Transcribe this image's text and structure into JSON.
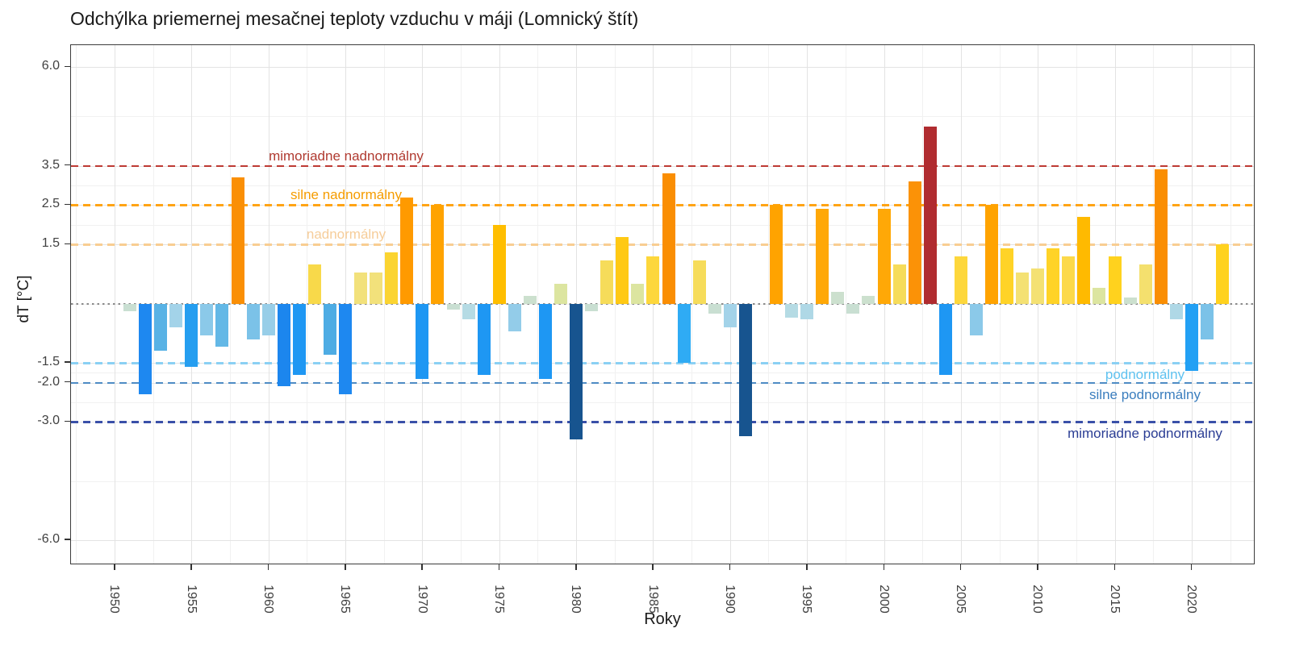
{
  "title": "Odchýlka priemernej mesačnej teploty vzduchu v máji (Lomnický štít)",
  "chart_data": {
    "type": "bar",
    "title": "Odchýlka priemernej mesačnej teploty vzduchu v máji (Lomnický štít)",
    "xlabel": "Roky",
    "ylabel": "dT [°C]",
    "ylim": [
      -6.6,
      6.6
    ],
    "grid": true,
    "y_ticks": [
      {
        "value": 6.0,
        "label": "6.0"
      },
      {
        "value": 3.5,
        "label": "3.5"
      },
      {
        "value": 2.5,
        "label": "2.5"
      },
      {
        "value": 1.5,
        "label": "1.5"
      },
      {
        "value": -1.5,
        "label": "-1.5"
      },
      {
        "value": -2.0,
        "label": "-2.0"
      },
      {
        "value": -3.0,
        "label": "-3.0"
      },
      {
        "value": -6.0,
        "label": "-6.0"
      }
    ],
    "y_minor_gridlines": [
      4.75,
      3.0,
      2.0,
      0.0,
      -1.75,
      -2.5,
      -4.5
    ],
    "x_ticks": [
      1950,
      1955,
      1960,
      1965,
      1970,
      1975,
      1980,
      1985,
      1990,
      1995,
      2000,
      2005,
      2010,
      2015,
      2020
    ],
    "zero_line": true,
    "thresholds": [
      {
        "value": 3.5,
        "label": "mimoriadne nadnormálny",
        "line_color": "#be3a34",
        "label_color": "#b03a30",
        "side": "top"
      },
      {
        "value": 2.5,
        "label": "silne nadnormálny",
        "line_color": "#ffa415",
        "label_color": "#f59c00",
        "side": "top"
      },
      {
        "value": 1.5,
        "label": "nadnormálny",
        "line_color": "#f8cd92",
        "label_color": "#f6cd9a",
        "side": "top"
      },
      {
        "value": -1.5,
        "label": "podnormálny",
        "line_color": "#8ad0f4",
        "label_color": "#5fc2f0",
        "side": "bottom"
      },
      {
        "value": -2.0,
        "label": "silne podnormálny",
        "line_color": "#4e8bc4",
        "label_color": "#3b7ebe",
        "side": "bottom"
      },
      {
        "value": -3.0,
        "label": "mimoriadne podnormálny",
        "line_color": "#3a50a8",
        "label_color": "#2a3d94",
        "side": "bottom"
      }
    ],
    "x": [
      1951,
      1952,
      1953,
      1954,
      1955,
      1956,
      1957,
      1958,
      1959,
      1960,
      1961,
      1962,
      1963,
      1964,
      1965,
      1966,
      1967,
      1968,
      1969,
      1970,
      1971,
      1972,
      1973,
      1974,
      1975,
      1976,
      1977,
      1978,
      1979,
      1980,
      1981,
      1982,
      1983,
      1984,
      1985,
      1986,
      1987,
      1988,
      1989,
      1990,
      1991,
      1992,
      1993,
      1994,
      1995,
      1996,
      1997,
      1998,
      1999,
      2000,
      2001,
      2002,
      2003,
      2004,
      2005,
      2006,
      2007,
      2008,
      2009,
      2010,
      2011,
      2012,
      2013,
      2014,
      2015,
      2016,
      2017,
      2018,
      2019,
      2020,
      2021,
      2022
    ],
    "values": [
      -0.2,
      -2.3,
      -1.2,
      -0.6,
      -1.6,
      -0.8,
      -1.1,
      3.2,
      -0.9,
      -0.8,
      -2.1,
      -1.8,
      1.0,
      -1.3,
      -2.3,
      0.8,
      0.8,
      1.3,
      2.7,
      -1.9,
      2.5,
      -0.15,
      -0.4,
      -1.8,
      2.0,
      -0.7,
      0.2,
      -1.9,
      0.5,
      -3.45,
      -0.2,
      1.1,
      1.7,
      0.5,
      1.2,
      3.3,
      -1.5,
      1.1,
      -0.25,
      -0.6,
      -3.35,
      0.0,
      2.5,
      -0.35,
      -0.4,
      2.4,
      0.3,
      -0.25,
      0.2,
      2.4,
      1.0,
      3.1,
      4.5,
      -1.8,
      1.2,
      -0.8,
      2.5,
      1.4,
      0.8,
      0.9,
      1.4,
      1.2,
      2.2,
      0.4,
      1.2,
      0.15,
      1.0,
      3.4,
      -0.4,
      -1.7,
      -0.9,
      1.5
    ],
    "bar_colors": [
      "#c9dfd2",
      "#1e88f0",
      "#58b2e5",
      "#a3d3e9",
      "#259ef0",
      "#8bc9e9",
      "#63b8e6",
      "#fa8f05",
      "#7bc2e8",
      "#98cee8",
      "#1c86ee",
      "#1e97f3",
      "#f8d94a",
      "#4eace4",
      "#1e88f0",
      "#f2e17b",
      "#f2e17b",
      "#fbd431",
      "#ff9a00",
      "#1e97f3",
      "#ffa300",
      "#c9dfd2",
      "#b5dbe4",
      "#1e97f3",
      "#ffbe00",
      "#93cce9",
      "#cce0ce",
      "#1e97f3",
      "#dce5a0",
      "#17548f",
      "#c9dfd2",
      "#f6dc5a",
      "#ffc914",
      "#dce5a0",
      "#fdd73c",
      "#fa8e03",
      "#2fabf4",
      "#f6dc5a",
      "#c9dfd2",
      "#a3d3e9",
      "#17548f",
      null,
      "#ffa300",
      "#b5dbe4",
      "#afd8e6",
      "#ffa807",
      "#cce0ce",
      "#c9dfd2",
      "#cce0ce",
      "#ffa807",
      "#f6dc5a",
      "#fb9207",
      "#b02c30",
      "#1e97f3",
      "#fdd73c",
      "#8bc9e9",
      "#ffa300",
      "#ffd327",
      "#f4e173",
      "#f4e173",
      "#ffd327",
      "#fcd94a",
      "#ffba00",
      "#dce5a0",
      "#ffd21e",
      "#cce0ce",
      "#f4e06e",
      "#fa8e03",
      "#afd8e6",
      "#22a0f4",
      "#7bc2e8",
      "#ffd21e"
    ]
  }
}
